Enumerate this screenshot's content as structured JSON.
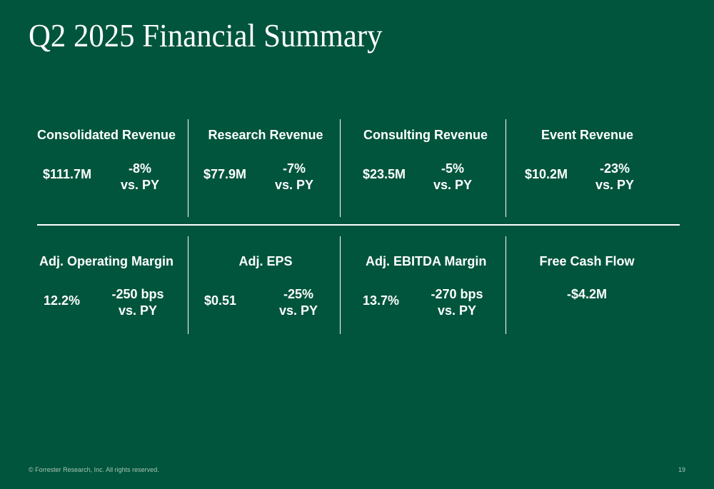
{
  "title": "Q2 2025 Financial Summary",
  "metrics": {
    "consolidated_revenue": {
      "title": "Consolidated Revenue",
      "value": "$111.7M",
      "change": "-8%",
      "comparison": "vs. PY"
    },
    "research_revenue": {
      "title": "Research Revenue",
      "value": "$77.9M",
      "change": "-7%",
      "comparison": "vs. PY"
    },
    "consulting_revenue": {
      "title": "Consulting Revenue",
      "value": "$23.5M",
      "change": "-5%",
      "comparison": "vs. PY"
    },
    "event_revenue": {
      "title": "Event Revenue",
      "value": "$10.2M",
      "change": "-23%",
      "comparison": "vs. PY"
    },
    "adj_operating_margin": {
      "title": "Adj. Operating Margin",
      "value": "12.2%",
      "change": "-250 bps",
      "comparison": "vs. PY"
    },
    "adj_eps": {
      "title": "Adj. EPS",
      "value": "$0.51",
      "change": "-25%",
      "comparison": "vs. PY"
    },
    "adj_ebitda_margin": {
      "title": "Adj. EBITDA Margin",
      "value": "13.7%",
      "change": "-270 bps",
      "comparison": "vs. PY"
    },
    "free_cash_flow": {
      "title": "Free Cash Flow",
      "value": "-$4.2M"
    }
  },
  "footer": {
    "copyright": "© Forrester Research, Inc. All rights reserved.",
    "page_number": "19"
  },
  "colors": {
    "background": "#00553c",
    "text": "#ffffff",
    "footer_text": "#a9c4b6"
  }
}
